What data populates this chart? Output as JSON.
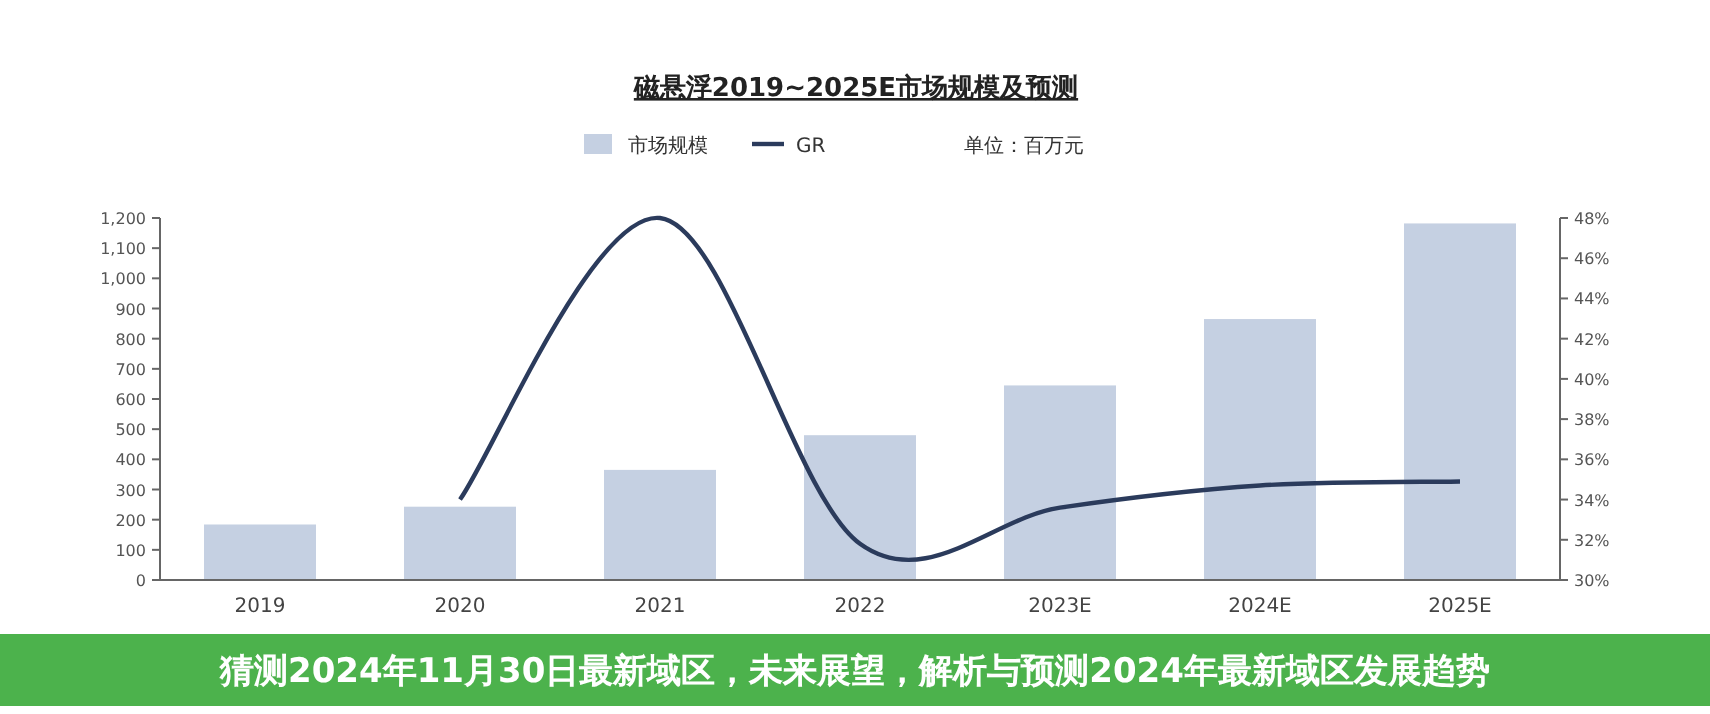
{
  "chart_data": {
    "type": "bar",
    "title": "磁悬浮2019~2025E市场规模及预测",
    "categories": [
      "2019",
      "2020",
      "2021",
      "2022",
      "2023E",
      "2024E",
      "2025E"
    ],
    "series": [
      {
        "name": "市场规模",
        "color": "#c5d0e2",
        "values": [
          184,
          243,
          365,
          480,
          645,
          865,
          1182
        ]
      },
      {
        "name": "GR",
        "type": "line",
        "axis": "y2",
        "color": "#2b3b5c",
        "values": [
          null,
          34,
          48,
          31.8,
          33.6,
          34.7,
          34.9
        ]
      }
    ],
    "ylim": [
      0,
      1200
    ],
    "yticks": [
      0,
      100,
      200,
      300,
      400,
      500,
      600,
      700,
      800,
      900,
      {
        "value": 1000,
        "label": "1,000"
      },
      {
        "value": 1100,
        "label": "1,100"
      },
      {
        "value": 1200,
        "label": "1,200"
      }
    ],
    "y2lim": [
      30,
      48
    ],
    "y2ticks": [
      {
        "value": 30,
        "label": "30%"
      },
      {
        "value": 32,
        "label": "32%"
      },
      {
        "value": 34,
        "label": "34%"
      },
      {
        "value": 36,
        "label": "36%"
      },
      {
        "value": 38,
        "label": "38%"
      },
      {
        "value": 40,
        "label": "40%"
      },
      {
        "value": 42,
        "label": "42%"
      },
      {
        "value": 44,
        "label": "44%"
      },
      {
        "value": 46,
        "label": "46%"
      },
      {
        "value": 48,
        "label": "48%"
      }
    ],
    "legend": "top",
    "grid": false,
    "annotations": [
      "单位：百万元",
      "猜测2024年11月30日最新域区，未来展望，解析与预测2024年最新域区发展趋势"
    ]
  }
}
